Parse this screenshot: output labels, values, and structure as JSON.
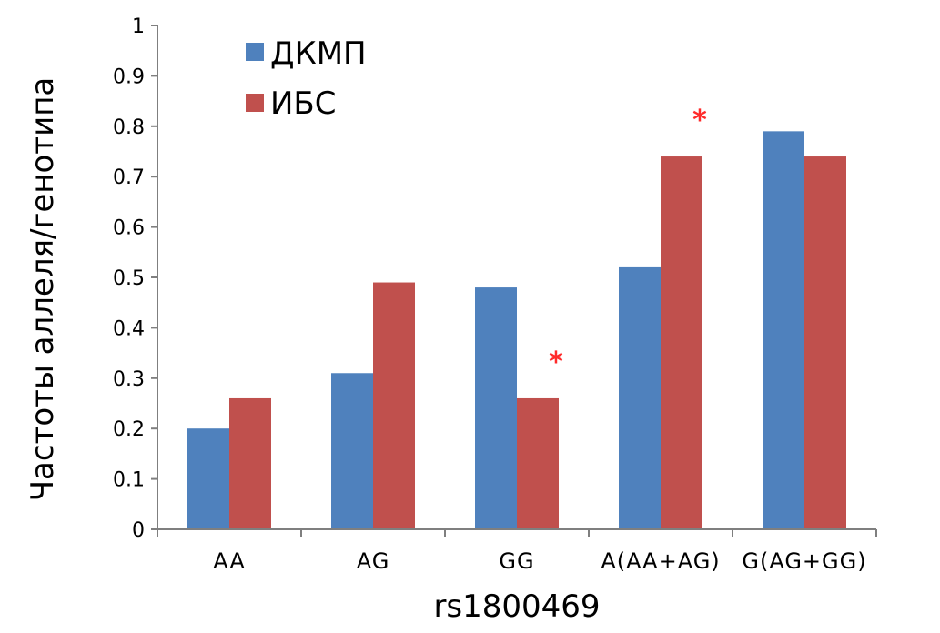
{
  "chart_data": {
    "type": "bar",
    "categories": [
      "AA",
      "AG",
      "GG",
      "A(AA+AG)",
      "G(AG+GG)"
    ],
    "series": [
      {
        "name": "ДКМП",
        "color": "#4f81bd",
        "values": [
          0.2,
          0.31,
          0.48,
          0.52,
          0.79
        ]
      },
      {
        "name": "ИБС",
        "color": "#c0504d",
        "values": [
          0.26,
          0.49,
          0.26,
          0.74,
          0.74
        ]
      }
    ],
    "xlabel": "rs1800469",
    "ylabel": "Частоты аллеля/генотипа",
    "ylim": [
      0,
      1
    ],
    "yticks": [
      "0",
      "0.1",
      "0.2",
      "0.3",
      "0.4",
      "0.5",
      "0.6",
      "0.7",
      "0.8",
      "0.9",
      "1"
    ],
    "grid": false,
    "legend_position": "top-left",
    "annotations": [
      {
        "text": "*",
        "category": "GG",
        "series": "ИБС",
        "color": "#ff2a2a"
      },
      {
        "text": "*",
        "category": "A(AA+AG)",
        "series": "ИБС",
        "color": "#ff2a2a"
      }
    ]
  }
}
